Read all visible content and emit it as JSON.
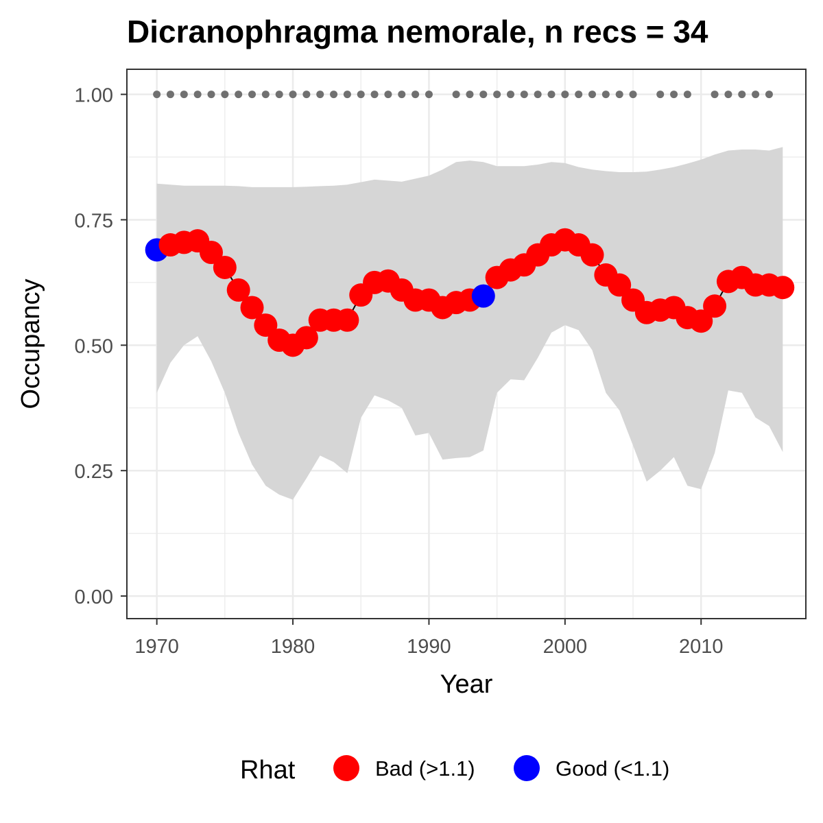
{
  "chart_data": {
    "type": "line",
    "title": "Dicranophragma nemorale, n recs = 34",
    "xlabel": "Year",
    "ylabel": "Occupancy",
    "xlim": [
      1967.8,
      2017.7
    ],
    "ylim": [
      -0.045,
      1.05
    ],
    "x_ticks": [
      1970,
      1980,
      1990,
      2000,
      2010
    ],
    "x_tick_labels": [
      "1970",
      "1980",
      "1990",
      "2000",
      "2010"
    ],
    "y_ticks": [
      0,
      0.25,
      0.5,
      0.75,
      1
    ],
    "y_tick_labels": [
      "0.00",
      "0.25",
      "0.50",
      "0.75",
      "1.00"
    ],
    "grid": true,
    "years": [
      1970,
      1971,
      1972,
      1973,
      1974,
      1975,
      1976,
      1977,
      1978,
      1979,
      1980,
      1981,
      1982,
      1983,
      1984,
      1985,
      1986,
      1987,
      1988,
      1989,
      1990,
      1991,
      1992,
      1993,
      1994,
      1995,
      1996,
      1997,
      1998,
      1999,
      2000,
      2001,
      2002,
      2003,
      2004,
      2005,
      2006,
      2007,
      2008,
      2009,
      2010,
      2011,
      2012,
      2013,
      2014,
      2015,
      2016
    ],
    "occupancy": [
      0.69,
      0.7,
      0.705,
      0.708,
      0.685,
      0.655,
      0.61,
      0.575,
      0.54,
      0.51,
      0.5,
      0.515,
      0.55,
      0.55,
      0.55,
      0.6,
      0.625,
      0.628,
      0.61,
      0.59,
      0.59,
      0.575,
      0.585,
      0.59,
      0.598,
      0.635,
      0.65,
      0.66,
      0.68,
      0.7,
      0.71,
      0.7,
      0.68,
      0.64,
      0.62,
      0.59,
      0.565,
      0.57,
      0.575,
      0.555,
      0.548,
      0.578,
      0.627,
      0.635,
      0.62,
      0.62,
      0.615
    ],
    "rhat_status": [
      "Good",
      "Bad",
      "Bad",
      "Bad",
      "Bad",
      "Bad",
      "Bad",
      "Bad",
      "Bad",
      "Bad",
      "Bad",
      "Bad",
      "Bad",
      "Bad",
      "Bad",
      "Bad",
      "Bad",
      "Bad",
      "Bad",
      "Bad",
      "Bad",
      "Bad",
      "Bad",
      "Bad",
      "Good",
      "Bad",
      "Bad",
      "Bad",
      "Bad",
      "Bad",
      "Bad",
      "Bad",
      "Bad",
      "Bad",
      "Bad",
      "Bad",
      "Bad",
      "Bad",
      "Bad",
      "Bad",
      "Bad",
      "Bad",
      "Bad",
      "Bad",
      "Bad",
      "Bad",
      "Bad"
    ],
    "ci_upper": [
      0.822,
      0.82,
      0.818,
      0.818,
      0.818,
      0.818,
      0.817,
      0.815,
      0.815,
      0.815,
      0.815,
      0.816,
      0.817,
      0.818,
      0.82,
      0.825,
      0.83,
      0.828,
      0.826,
      0.832,
      0.838,
      0.85,
      0.865,
      0.868,
      0.865,
      0.857,
      0.857,
      0.857,
      0.86,
      0.865,
      0.863,
      0.855,
      0.85,
      0.847,
      0.845,
      0.845,
      0.846,
      0.85,
      0.855,
      0.862,
      0.87,
      0.88,
      0.888,
      0.89,
      0.89,
      0.888,
      0.895
    ],
    "ci_lower": [
      0.405,
      0.465,
      0.5,
      0.518,
      0.468,
      0.405,
      0.325,
      0.262,
      0.22,
      0.202,
      0.192,
      0.235,
      0.28,
      0.267,
      0.245,
      0.355,
      0.4,
      0.39,
      0.375,
      0.32,
      0.325,
      0.272,
      0.275,
      0.277,
      0.29,
      0.405,
      0.432,
      0.43,
      0.475,
      0.525,
      0.54,
      0.53,
      0.49,
      0.405,
      0.37,
      0.3,
      0.228,
      0.25,
      0.277,
      0.22,
      0.213,
      0.285,
      0.41,
      0.405,
      0.356,
      0.339,
      0.287
    ],
    "recorded_years": [
      1970,
      1971,
      1972,
      1973,
      1974,
      1975,
      1976,
      1977,
      1978,
      1979,
      1980,
      1981,
      1982,
      1983,
      1984,
      1985,
      1986,
      1987,
      1988,
      1989,
      1990,
      1992,
      1993,
      1994,
      1995,
      1996,
      1997,
      1998,
      1999,
      2000,
      2001,
      2002,
      2003,
      2004,
      2005,
      2007,
      2008,
      2009,
      2011,
      2012,
      2013,
      2014,
      2015
    ],
    "recorded_value": 1,
    "legend": {
      "title": "Rhat",
      "position": "bottom",
      "entries": [
        {
          "label": "Bad (>1.1)",
          "color": "#ff0000"
        },
        {
          "label": "Good (<1.1)",
          "color": "#0000ff"
        }
      ]
    },
    "colors": {
      "ribbon": "#d6d6d6",
      "record_dots": "#707070",
      "panel_border": "#333333",
      "grid": "#ebebeb"
    }
  }
}
